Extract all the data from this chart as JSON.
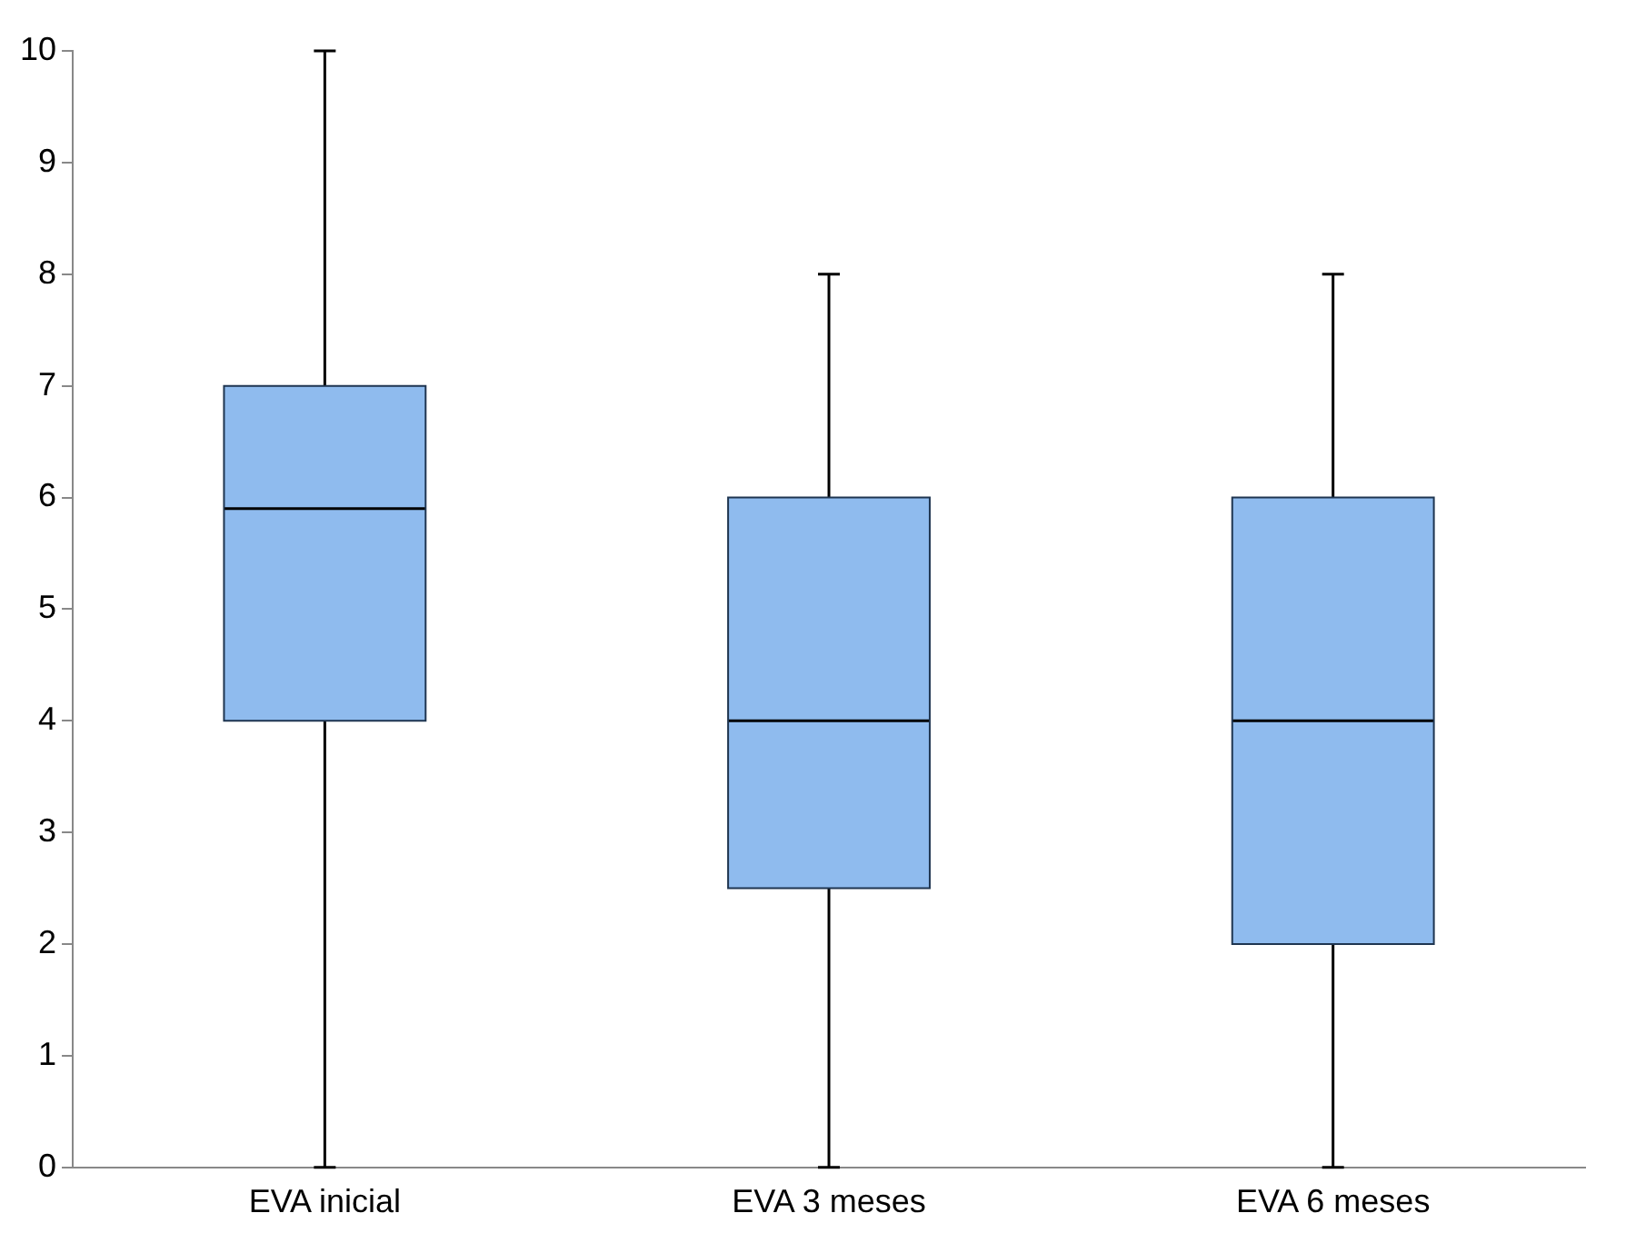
{
  "chart_data": {
    "type": "box",
    "categories": [
      "EVA inicial",
      "EVA 3 meses",
      "EVA 6 meses"
    ],
    "boxes": [
      {
        "low": 0,
        "q1": 4,
        "median": 5.9,
        "q3": 7,
        "high": 10
      },
      {
        "low": 0,
        "q1": 2.5,
        "median": 4,
        "q3": 6,
        "high": 8
      },
      {
        "low": 0,
        "q1": 2,
        "median": 4,
        "q3": 6,
        "high": 8
      }
    ],
    "color": "#8fbbee",
    "ylim": [
      0,
      10
    ],
    "yticks": [
      0,
      1,
      2,
      3,
      4,
      5,
      6,
      7,
      8,
      9,
      10
    ],
    "grid": false,
    "legend": false
  }
}
